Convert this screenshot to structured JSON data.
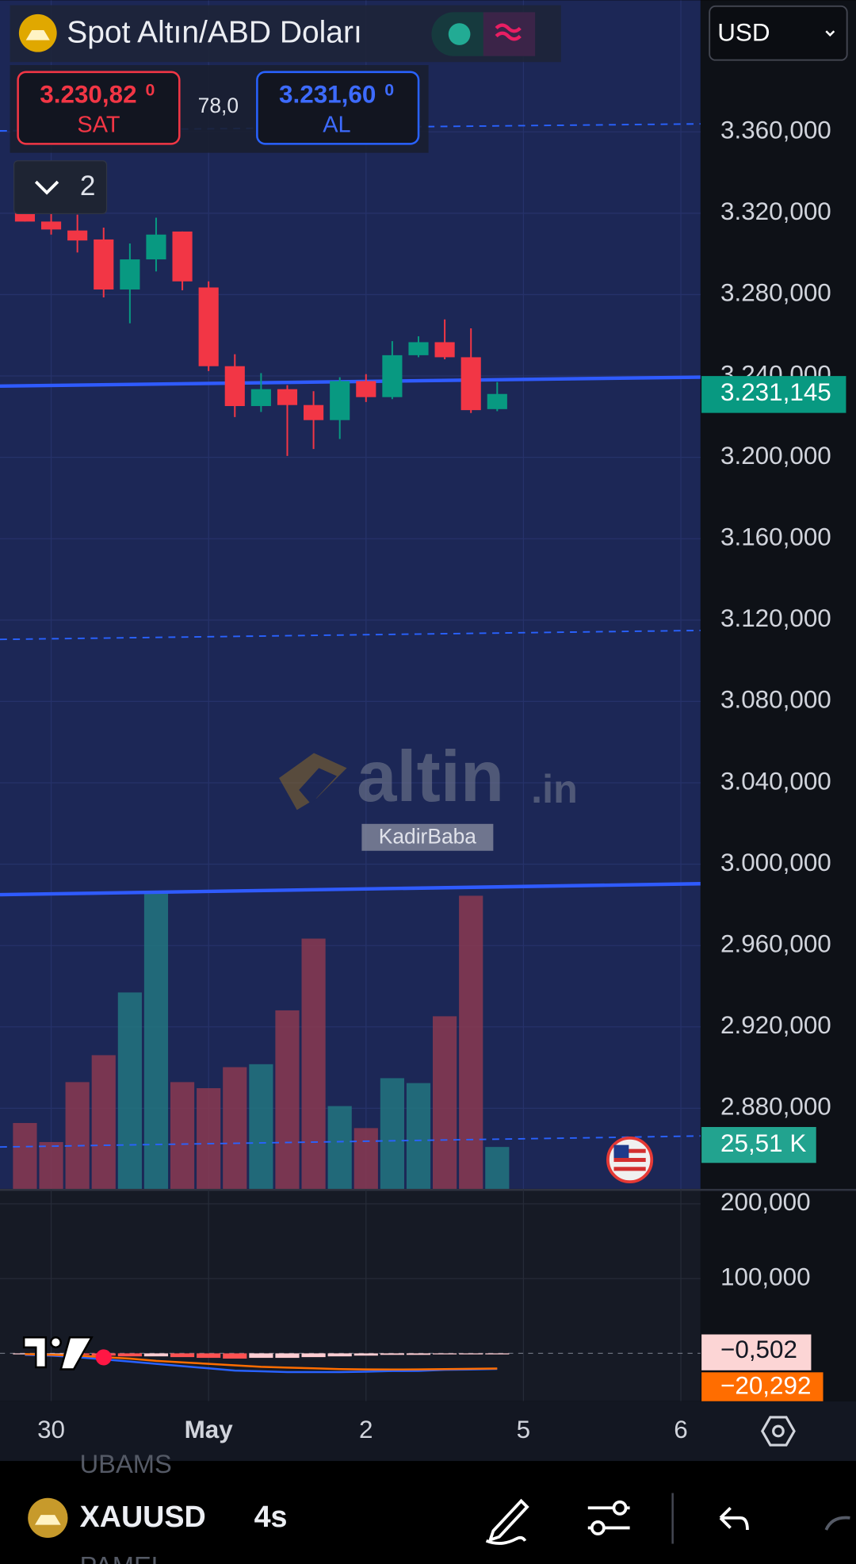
{
  "header": {
    "title": "Spot Altın/ABD Doları",
    "currency": "USD",
    "indicator_count": 2
  },
  "quote": {
    "bid": "3.230,82",
    "bid_tail": "0",
    "bid_label": "SAT",
    "spread": "78,0",
    "ask": "3.231,60",
    "ask_tail": "0",
    "ask_label": "AL"
  },
  "watermark": {
    "brand": "altin",
    "brand_suffix": ".in",
    "user": "KadirBaba"
  },
  "chart": {
    "type": "candlestick",
    "x": [
      0,
      1,
      2,
      3,
      4,
      5,
      6,
      7,
      8,
      9,
      10,
      11,
      12,
      13,
      14,
      15,
      16,
      17,
      18
    ],
    "open": [
      3326.7,
      3315.9,
      3311.5,
      3307.1,
      3282.5,
      3297.3,
      3311.0,
      3283.5,
      3244.8,
      3225.2,
      3233.5,
      3225.7,
      3218.3,
      3237.5,
      3229.6,
      3250.2,
      3256.6,
      3249.2,
      3223.7
    ],
    "high": [
      3327.6,
      3320.8,
      3319.3,
      3312.9,
      3305.1,
      3317.8,
      3311.0,
      3286.5,
      3250.7,
      3241.4,
      3235.5,
      3232.5,
      3239.4,
      3240.9,
      3257.1,
      3259.5,
      3267.8,
      3263.4,
      3237.0
    ],
    "low": [
      3315.9,
      3309.5,
      3300.7,
      3278.6,
      3265.9,
      3291.4,
      3282.1,
      3242.4,
      3219.8,
      3222.3,
      3200.7,
      3204.1,
      3209.0,
      3227.2,
      3228.6,
      3249.2,
      3248.2,
      3221.8,
      3222.7
    ],
    "close": [
      3315.9,
      3312.0,
      3306.6,
      3282.5,
      3297.3,
      3309.5,
      3286.5,
      3244.8,
      3225.2,
      3233.5,
      3225.7,
      3218.3,
      3237.5,
      3229.6,
      3250.2,
      3256.6,
      3249.2,
      3223.2,
      3231.145
    ],
    "up_color": "#089981",
    "down_color": "#f23645",
    "xlim": [
      -0.95,
      25.75
    ],
    "xticks": [
      {
        "value": 1,
        "label": "30"
      },
      {
        "value": 7,
        "label": "May"
      },
      {
        "value": 13,
        "label": "2"
      },
      {
        "value": 19,
        "label": "5"
      },
      {
        "value": 25,
        "label": "6"
      }
    ],
    "ylim": [
      2840.4,
      3424.7
    ],
    "yticks": [
      {
        "value": 3360,
        "label": "3.360,000"
      },
      {
        "value": 3320,
        "label": "3.320,000"
      },
      {
        "value": 3280,
        "label": "3.280,000"
      },
      {
        "value": 3240,
        "label": "3.240,000"
      },
      {
        "value": 3200,
        "label": "3.200,000"
      },
      {
        "value": 3160,
        "label": "3.160,000"
      },
      {
        "value": 3120,
        "label": "3.120,000"
      },
      {
        "value": 3080,
        "label": "3.080,000"
      },
      {
        "value": 3040,
        "label": "3.040,000"
      },
      {
        "value": 3000,
        "label": "3.000,000"
      },
      {
        "value": 2960,
        "label": "2.960,000"
      },
      {
        "value": 2920,
        "label": "2.920,000"
      },
      {
        "value": 2880,
        "label": "2.880,000"
      }
    ],
    "last_price": {
      "value": 3231.145,
      "label": "3.231,145"
    },
    "grid": true
  },
  "volume": {
    "values": [
      40.1,
      28.5,
      65.0,
      81.4,
      119.6,
      180.4,
      65.0,
      61.3,
      74.1,
      75.9,
      108.7,
      152.4,
      50.4,
      37.0,
      67.4,
      64.4,
      105.1,
      178.5,
      25.51
    ],
    "value_labels": [
      null,
      null,
      null,
      null,
      null,
      null,
      null,
      null,
      null,
      null,
      null,
      null,
      null,
      null,
      null,
      null,
      null,
      null,
      "25,51 K"
    ],
    "ylim": [
      0,
      723.9
    ],
    "up_color": "#22757f",
    "down_color": "#8a3a50"
  },
  "macd": {
    "histogram": [
      -1,
      -1,
      -2,
      -3,
      -4,
      -4,
      -5,
      -6,
      -7,
      -6,
      -6,
      -5,
      -4,
      -3,
      -2,
      -2,
      -1,
      -1,
      -0.502
    ],
    "histogram_labels": [
      null,
      null,
      null,
      null,
      null,
      null,
      null,
      null,
      null,
      null,
      null,
      null,
      null,
      null,
      null,
      null,
      null,
      null,
      "−0,502"
    ],
    "macd_line": [
      -2,
      -3,
      -5,
      -8,
      -11,
      -14,
      -17,
      -20,
      -23,
      -24,
      -25,
      -25,
      -25,
      -24.5,
      -23.6,
      -23.4,
      -22,
      -21.6,
      -20.794
    ],
    "signal": [
      -1,
      -2,
      -3,
      -5,
      -7,
      -10,
      -12,
      -14,
      -16,
      -18,
      -19,
      -20,
      -21,
      -21.5,
      -21.6,
      -21.4,
      -21,
      -20.6,
      -20.292
    ],
    "signal_labels": [
      null,
      null,
      null,
      null,
      null,
      null,
      null,
      null,
      null,
      null,
      null,
      null,
      null,
      null,
      null,
      null,
      null,
      null,
      "−20,292"
    ],
    "macd_color": "#2962ff",
    "signal_color": "#ff6d00",
    "ylim": [
      -64,
      220
    ],
    "yticks": [
      {
        "value": 200,
        "label": "200,000"
      },
      {
        "value": 100,
        "label": "100,000"
      }
    ]
  },
  "toolbar": {
    "symbol": "XAUUSD",
    "interval": "4s",
    "above": "UBAMS",
    "below": "PAMEL"
  }
}
